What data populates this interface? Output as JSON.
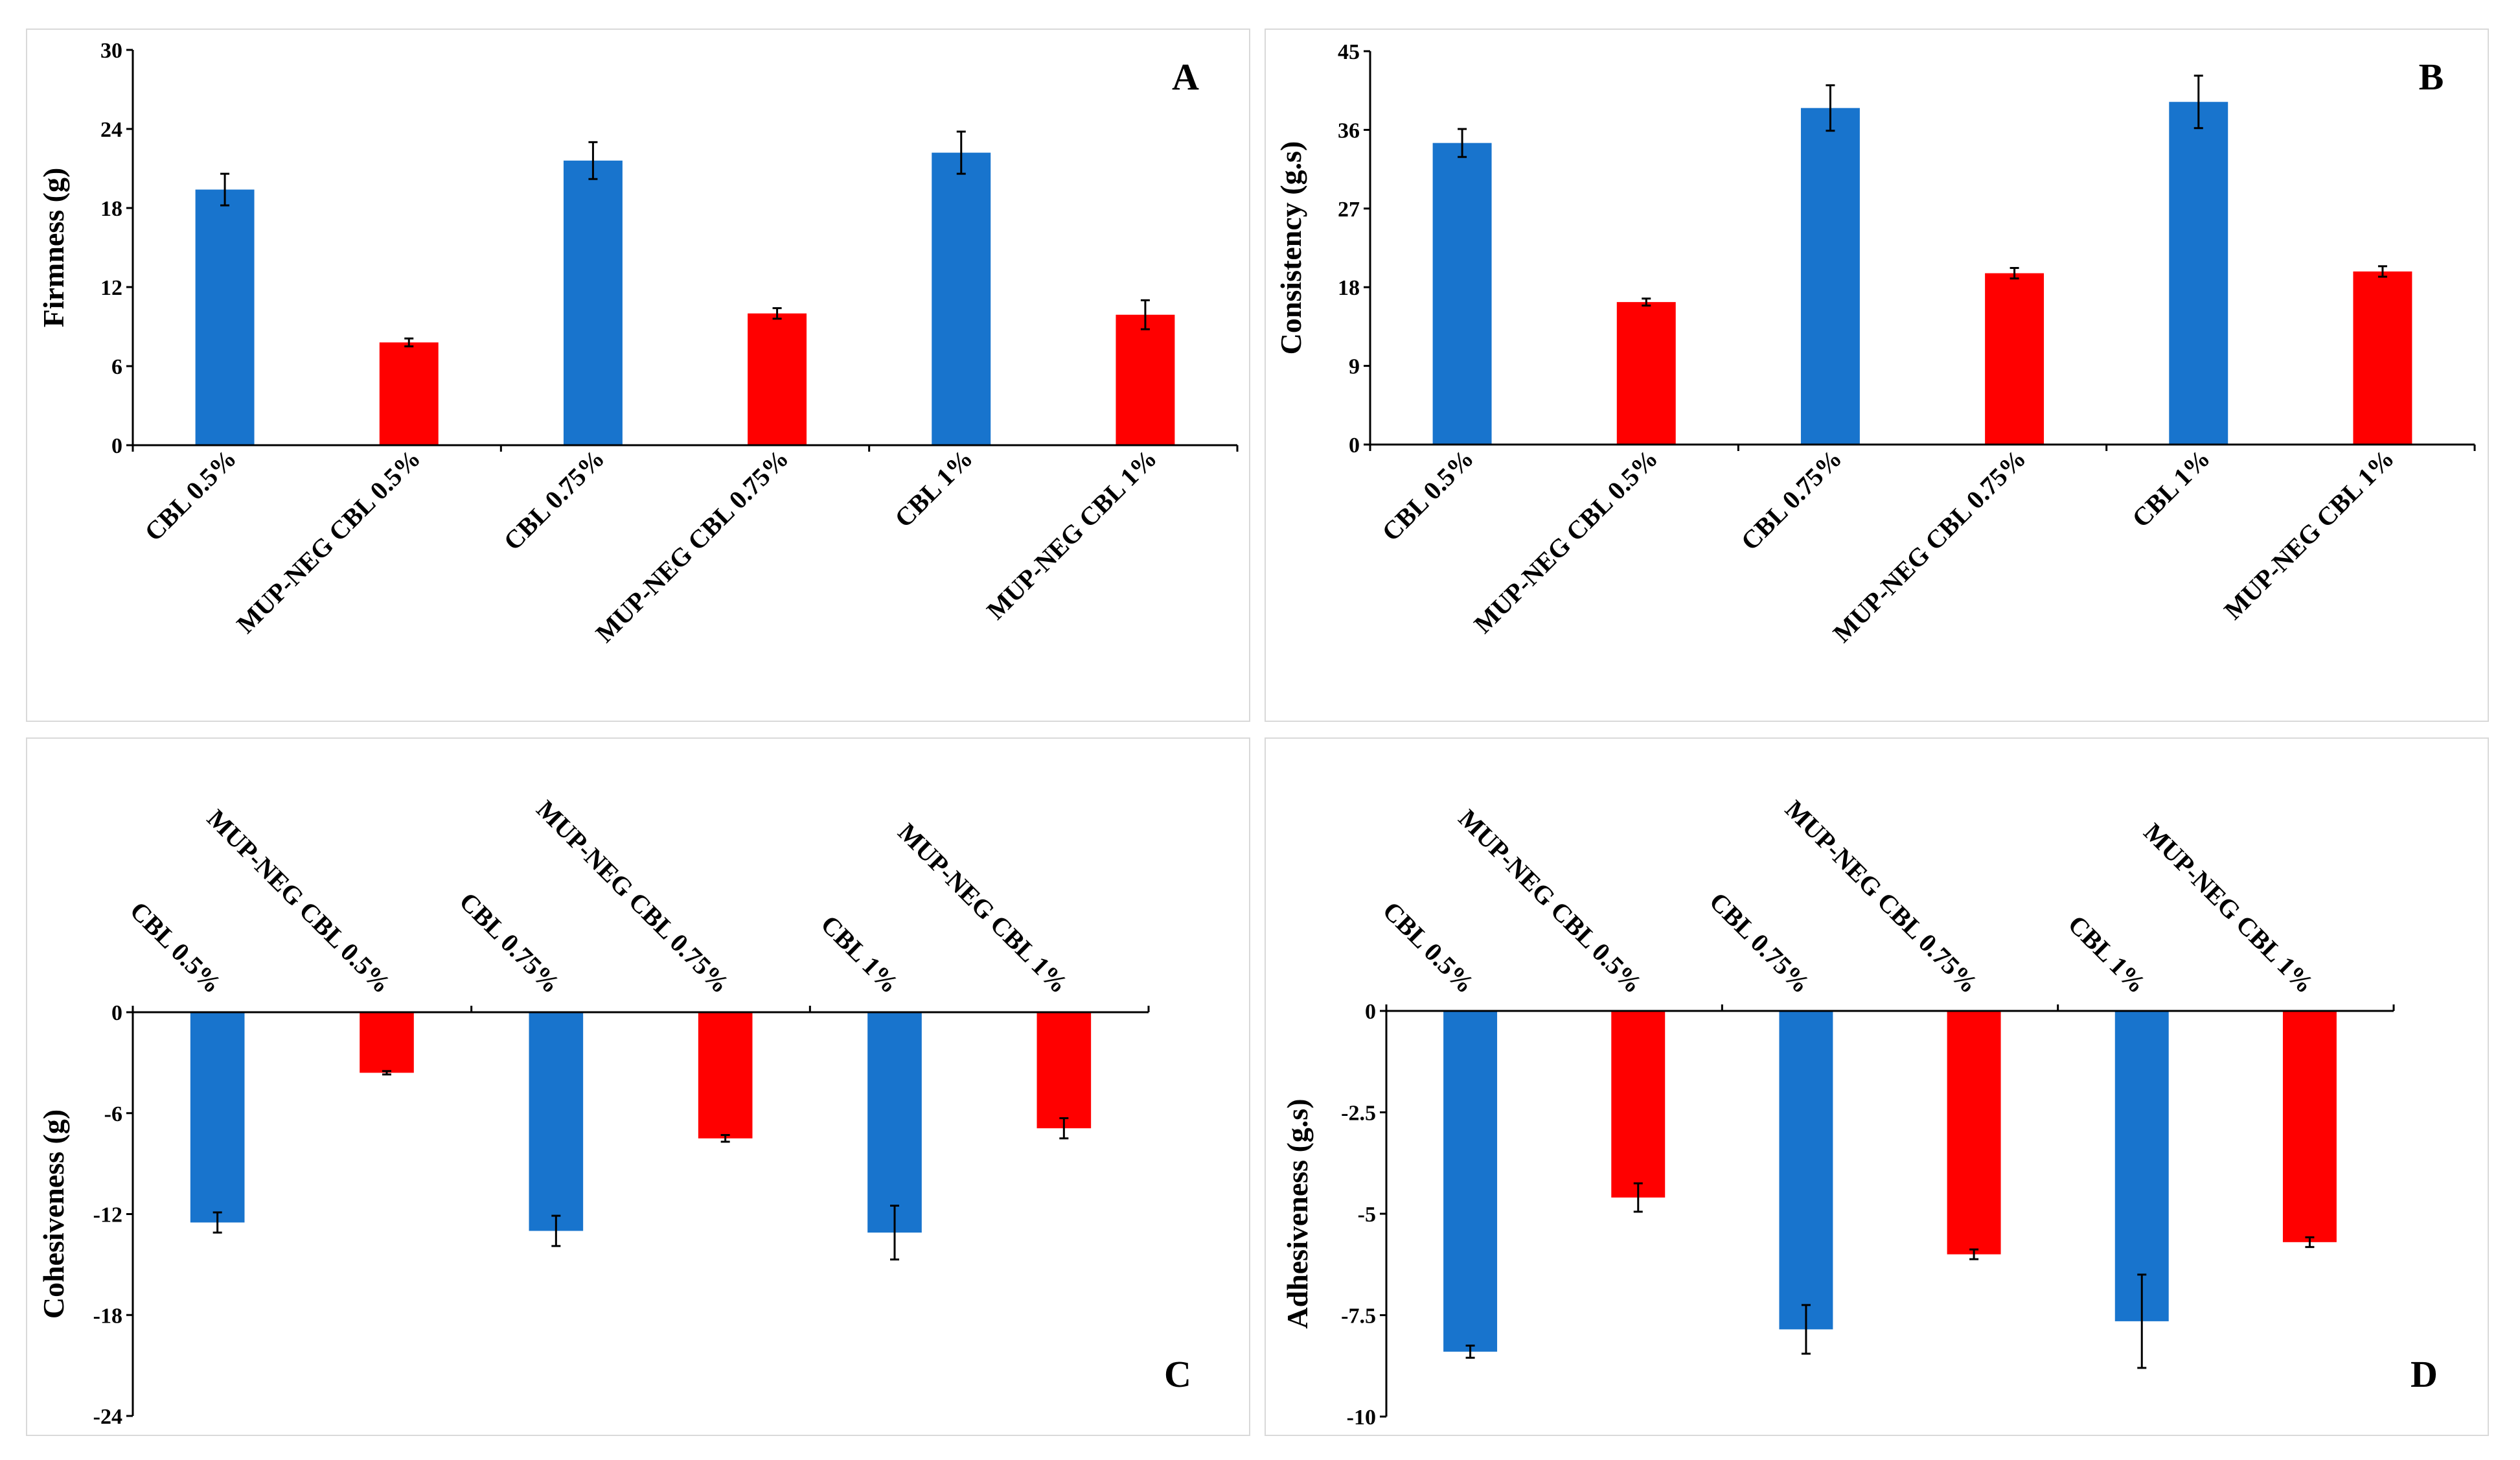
{
  "colors": {
    "blue": "#1874cd",
    "red": "#ff0000",
    "axis": "#000000",
    "border": "#d9d9d9"
  },
  "chart_data": [
    {
      "type": "bar",
      "panel_label": "A",
      "ylabel": "Firmness (g)",
      "categories": [
        "CBL 0.5%",
        "MUP-NEG CBL 0.5%",
        "CBL 0.75%",
        "MUP-NEG CBL 0.75%",
        "CBL 1%",
        "MUP-NEG CBL 1%"
      ],
      "values": [
        19.4,
        7.8,
        21.6,
        10.0,
        22.2,
        9.9
      ],
      "errors": [
        1.2,
        0.3,
        1.4,
        0.4,
        1.6,
        1.1
      ],
      "colors": [
        "blue",
        "red",
        "blue",
        "red",
        "blue",
        "red"
      ],
      "ylim": [
        0,
        30
      ],
      "ticks": [
        0,
        6,
        12,
        18,
        24,
        30
      ],
      "tick_labels": [
        "0",
        "6",
        "12",
        "18",
        "24",
        "30"
      ]
    },
    {
      "type": "bar",
      "panel_label": "B",
      "ylabel": "Consistency (g.s)",
      "categories": [
        "CBL 0.5%",
        "MUP-NEG CBL 0.5%",
        "CBL 0.75%",
        "MUP-NEG CBL 0.75%",
        "CBL 1%",
        "MUP-NEG CBL 1%"
      ],
      "values": [
        34.5,
        16.3,
        38.5,
        19.6,
        39.2,
        19.8
      ],
      "errors": [
        1.6,
        0.4,
        2.6,
        0.6,
        3.0,
        0.6
      ],
      "colors": [
        "blue",
        "red",
        "blue",
        "red",
        "blue",
        "red"
      ],
      "ylim": [
        0,
        45
      ],
      "ticks": [
        0,
        9,
        18,
        27,
        36,
        45
      ],
      "tick_labels": [
        "0",
        "9",
        "18",
        "27",
        "36",
        "45"
      ]
    },
    {
      "type": "bar",
      "panel_label": "C",
      "ylabel": "Cohesiveness (g)",
      "categories": [
        "CBL 0.5%",
        "MUP-NEG CBL 0.5%",
        "CBL 0.75%",
        "MUP-NEG CBL 0.75%",
        "CBL 1%",
        "MUP-NEG CBL 1%"
      ],
      "values": [
        -12.5,
        -3.6,
        -13.0,
        -7.5,
        -13.1,
        -6.9
      ],
      "errors": [
        0.6,
        0.1,
        0.9,
        0.2,
        1.6,
        0.6
      ],
      "colors": [
        "blue",
        "red",
        "blue",
        "red",
        "blue",
        "red"
      ],
      "ylim": [
        -24,
        0
      ],
      "ticks": [
        0,
        -6,
        -12,
        -18,
        -24
      ],
      "tick_labels": [
        "0",
        "-6",
        "-12",
        "-18",
        "-24"
      ]
    },
    {
      "type": "bar",
      "panel_label": "D",
      "ylabel": "Adhesiveness (g.s)",
      "categories": [
        "CBL 0.5%",
        "MUP-NEG CBL 0.5%",
        "CBL 0.75%",
        "MUP-NEG CBL 0.75%",
        "CBL 1%",
        "MUP-NEG CBL 1%"
      ],
      "values": [
        -8.4,
        -4.6,
        -7.85,
        -6.0,
        -7.65,
        -5.7
      ],
      "errors": [
        0.15,
        0.35,
        0.6,
        0.12,
        1.15,
        0.12
      ],
      "colors": [
        "blue",
        "red",
        "blue",
        "red",
        "blue",
        "red"
      ],
      "ylim": [
        -10,
        0
      ],
      "ticks": [
        0,
        -2.5,
        -5,
        -7.5,
        -10
      ],
      "tick_labels": [
        "0",
        "-2.5",
        "-5",
        "-7.5",
        "-10"
      ]
    }
  ]
}
